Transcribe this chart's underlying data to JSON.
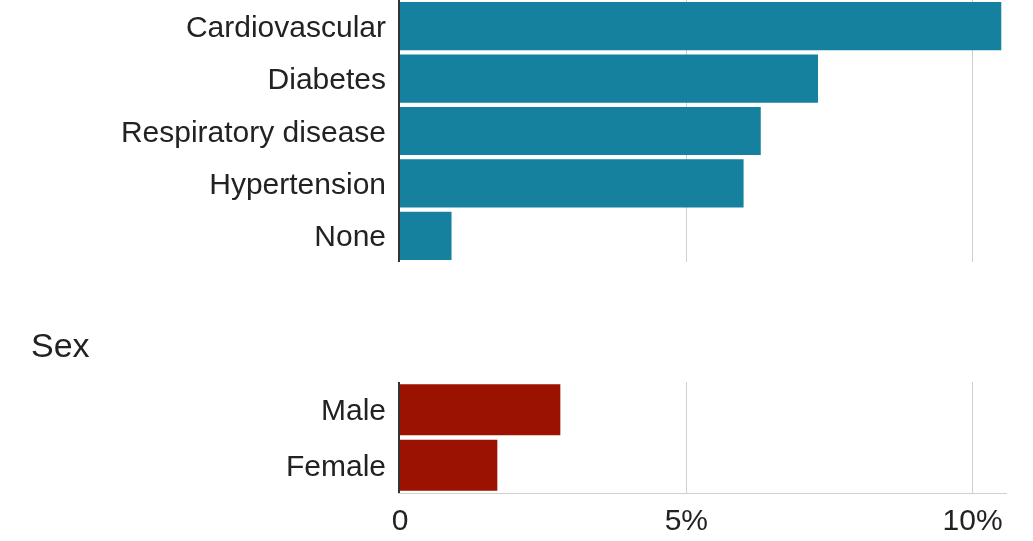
{
  "chart_data": [
    {
      "type": "bar",
      "orientation": "horizontal",
      "categories": [
        "Cardiovascular",
        "Diabetes",
        "Respiratory disease",
        "Hypertension",
        "None"
      ],
      "values": [
        10.5,
        7.3,
        6.3,
        6.0,
        0.9
      ],
      "color": "#15819f",
      "xlim": [
        0,
        10.6
      ],
      "xticks": [
        {
          "value": 0,
          "label": null
        },
        {
          "value": 5,
          "label": null
        },
        {
          "value": 10,
          "label": null
        }
      ],
      "grid": "x",
      "tick_labels": "y"
    },
    {
      "type": "bar",
      "orientation": "horizontal",
      "title": "Sex",
      "categories": [
        "Male",
        "Female"
      ],
      "values": [
        2.8,
        1.7
      ],
      "color": "#9b1200",
      "xlim": [
        0,
        10.6
      ],
      "xticks": [
        0,
        {
          "value": 5,
          "label": "5%"
        },
        {
          "value": 10,
          "label": "10%"
        }
      ],
      "grid": "x"
    }
  ]
}
